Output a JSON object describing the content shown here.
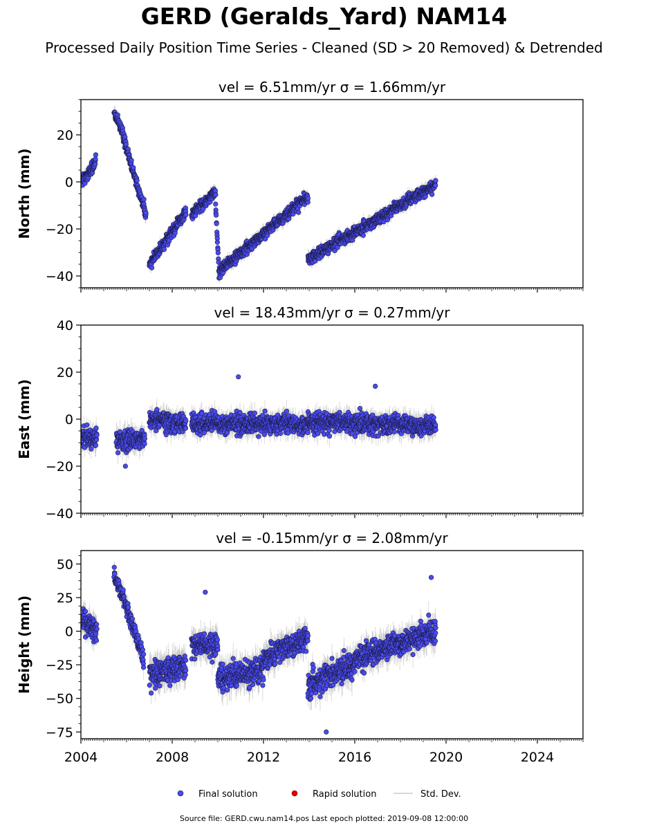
{
  "title": "GERD (Geralds_Yard) NAM14",
  "subtitle": "Processed Daily Position Time Series - Cleaned (SD > 20 Removed) & Detrended",
  "footer": "Source file: GERD.cwu.nam14.pos  Last epoch plotted: 2019-09-08 12:00:00",
  "legend": [
    {
      "label": "Final solution",
      "color": "#4a4af0",
      "marker": "circle"
    },
    {
      "label": "Rapid solution",
      "color": "#e00000",
      "marker": "circle"
    },
    {
      "label": "Std. Dev.",
      "color": "#cccccc",
      "marker": "line"
    }
  ],
  "chart_data": [
    {
      "type": "scatter",
      "title": "vel = 6.51mm/yr   σ = 1.66mm/yr",
      "ylabel": "North (mm)",
      "xlim": [
        2004.0,
        2026.0
      ],
      "ylim": [
        -45,
        35
      ],
      "yticks": [
        -40,
        -20,
        0,
        20
      ],
      "xticks": [
        2004,
        2008,
        2012,
        2016,
        2020,
        2024
      ],
      "show_xticklabels": false,
      "segments": [
        {
          "x": [
            2004.0,
            2004.65
          ],
          "y": [
            0,
            8
          ],
          "spread": 3
        },
        {
          "x": [
            2005.45,
            2005.85
          ],
          "y": [
            30,
            21
          ],
          "spread": 3
        },
        {
          "x": [
            2005.85,
            2006.85
          ],
          "y": [
            19,
            -14
          ],
          "spread": 3
        },
        {
          "x": [
            2007.0,
            2008.6
          ],
          "y": [
            -35,
            -13
          ],
          "spread": 3
        },
        {
          "x": [
            2008.85,
            2009.9
          ],
          "y": [
            -14,
            -4
          ],
          "spread": 3
        },
        {
          "x": [
            2009.9,
            2010.05
          ],
          "y": [
            -10,
            -38
          ],
          "spread": 2
        },
        {
          "x": [
            2010.05,
            2013.95
          ],
          "y": [
            -38,
            -6
          ],
          "spread": 3
        },
        {
          "x": [
            2013.95,
            2019.55
          ],
          "y": [
            -33,
            -1
          ],
          "spread": 3
        }
      ]
    },
    {
      "type": "scatter",
      "title": "vel = 18.43mm/yr   σ = 0.27mm/yr",
      "ylabel": "East (mm)",
      "xlim": [
        2004.0,
        2026.0
      ],
      "ylim": [
        -40,
        40
      ],
      "yticks": [
        -40,
        -20,
        0,
        20,
        40
      ],
      "xticks": [
        2004,
        2008,
        2012,
        2016,
        2020,
        2024
      ],
      "show_xticklabels": false,
      "segments": [
        {
          "x": [
            2004.0,
            2004.7
          ],
          "y": [
            -8,
            -8
          ],
          "spread": 5
        },
        {
          "x": [
            2005.55,
            2006.8
          ],
          "y": [
            -10,
            -8
          ],
          "spread": 5
        },
        {
          "x": [
            2007.0,
            2008.6
          ],
          "y": [
            0,
            -2
          ],
          "spread": 5
        },
        {
          "x": [
            2008.85,
            2013.95
          ],
          "y": [
            -2,
            -2
          ],
          "spread": 5
        },
        {
          "x": [
            2013.95,
            2019.55
          ],
          "y": [
            -1,
            -3
          ],
          "spread": 5
        }
      ],
      "outliers": [
        {
          "x": 2010.9,
          "y": 18
        },
        {
          "x": 2016.9,
          "y": 14
        },
        {
          "x": 2005.95,
          "y": -20
        }
      ]
    },
    {
      "type": "scatter",
      "title": "vel = -0.15mm/yr   σ = 2.08mm/yr",
      "ylabel": "Height (mm)",
      "xlim": [
        2004.0,
        2026.0
      ],
      "ylim": [
        -80,
        60
      ],
      "yticks": [
        -75,
        -50,
        -25,
        0,
        25,
        50
      ],
      "xticks": [
        2004,
        2008,
        2012,
        2016,
        2020,
        2024
      ],
      "show_xticklabels": true,
      "segments": [
        {
          "x": [
            2004.0,
            2004.7
          ],
          "y": [
            10,
            0
          ],
          "spread": 10
        },
        {
          "x": [
            2005.45,
            2005.95
          ],
          "y": [
            42,
            22
          ],
          "spread": 8
        },
        {
          "x": [
            2005.95,
            2006.75
          ],
          "y": [
            20,
            -20
          ],
          "spread": 9
        },
        {
          "x": [
            2007.0,
            2008.6
          ],
          "y": [
            -32,
            -25
          ],
          "spread": 12
        },
        {
          "x": [
            2008.85,
            2010.0
          ],
          "y": [
            -10,
            -10
          ],
          "spread": 11
        },
        {
          "x": [
            2010.0,
            2012.0
          ],
          "y": [
            -35,
            -28
          ],
          "spread": 12
        },
        {
          "x": [
            2012.0,
            2013.95
          ],
          "y": [
            -20,
            -5
          ],
          "spread": 11
        },
        {
          "x": [
            2013.95,
            2016.0
          ],
          "y": [
            -40,
            -25
          ],
          "spread": 12
        },
        {
          "x": [
            2016.0,
            2019.55
          ],
          "y": [
            -20,
            0
          ],
          "spread": 11
        }
      ],
      "outliers": [
        {
          "x": 2014.75,
          "y": -75
        },
        {
          "x": 2019.35,
          "y": 40
        },
        {
          "x": 2009.45,
          "y": 29
        }
      ]
    }
  ]
}
